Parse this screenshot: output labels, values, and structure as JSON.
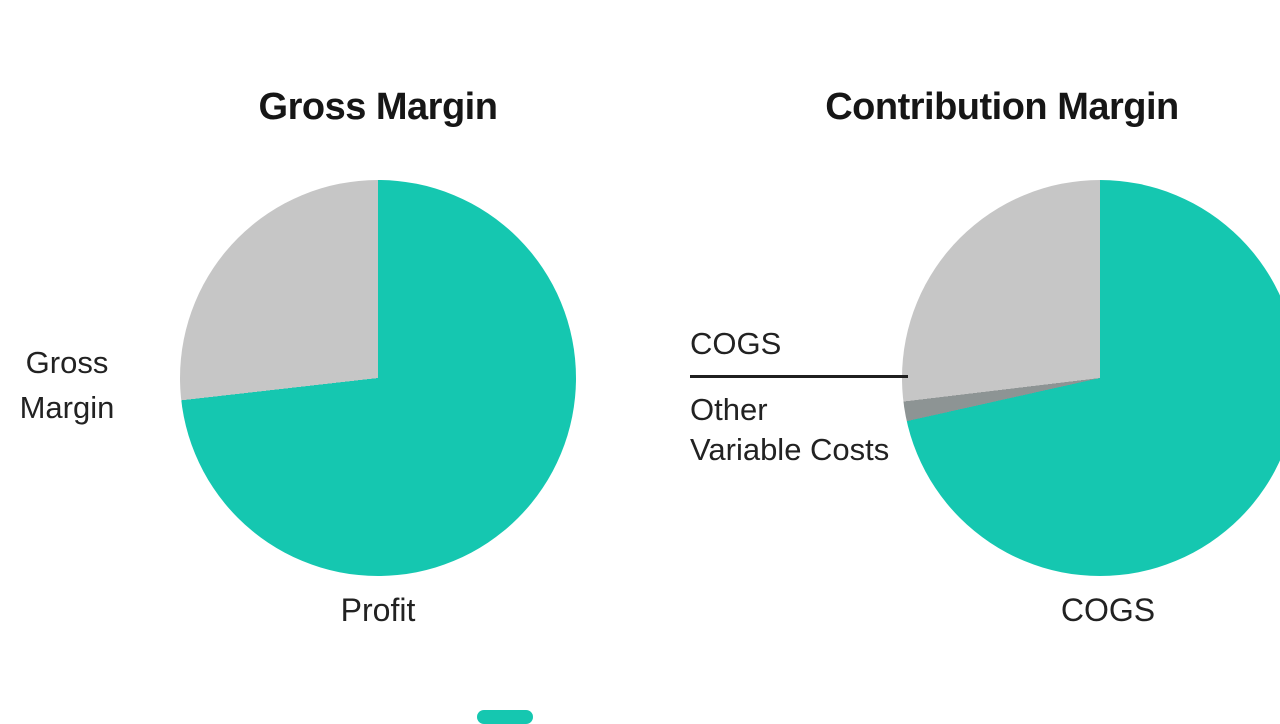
{
  "colors": {
    "background": "#ffffff",
    "teal": "#15c7b0",
    "gray": "#c6c6c6",
    "sliver": "#8d9494",
    "line": "#1f1f1f",
    "text": "#1d1d1d"
  },
  "chart_data": [
    {
      "type": "pie",
      "title": "Gross Margin",
      "slices": [
        {
          "label": "Profit",
          "value": 73.2,
          "color": "#15c7b0"
        },
        {
          "label": "Gross Margin",
          "value": 26.8,
          "color": "#c6c6c6"
        }
      ],
      "side_label_lines": [
        "Gross",
        "Margin"
      ],
      "bottom_label": "Profit",
      "legend": "none",
      "start_angle_deg": 0,
      "direction": "clockwise"
    },
    {
      "type": "pie",
      "title": "Contribution Margin",
      "slices": [
        {
          "label": "COGS",
          "value": 71.5,
          "color": "#15c7b0"
        },
        {
          "label": "Other Variable Costs",
          "value": 1.6,
          "color": "#8d9494"
        },
        {
          "label": "COGS",
          "value": 26.9,
          "color": "#c6c6c6"
        }
      ],
      "callout_top_label": "COGS",
      "callout_bottom_lines": [
        "Other",
        "Variable Costs"
      ],
      "bottom_label": "COGS",
      "legend": "none",
      "start_angle_deg": 0,
      "direction": "clockwise"
    }
  ]
}
